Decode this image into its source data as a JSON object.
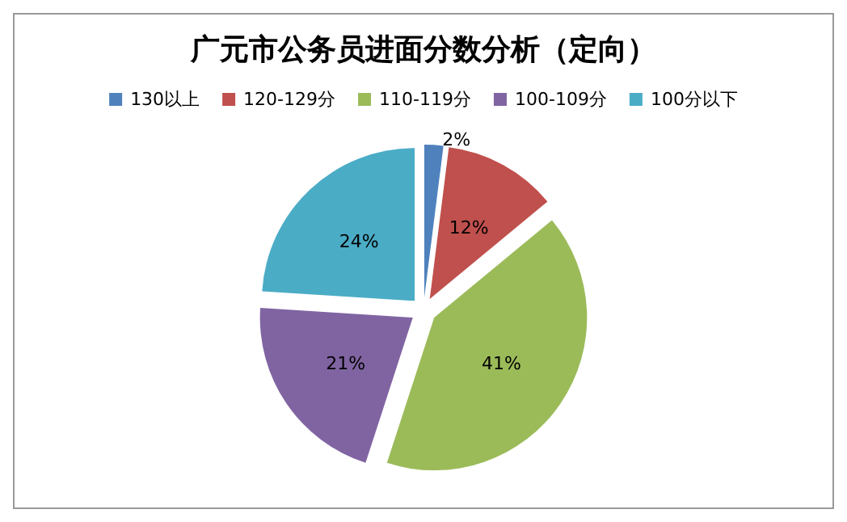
{
  "chart_data": {
    "type": "pie",
    "title": "广元市公务员进面分数分析（定向）",
    "categories": [
      "130以上",
      "120-129分",
      "110-119分",
      "100-109分",
      "100分以下"
    ],
    "values": [
      2,
      12,
      41,
      21,
      24
    ],
    "colors": [
      "#4f81bd",
      "#c0504d",
      "#9bbb59",
      "#8064a2",
      "#4bacc6"
    ],
    "value_labels": [
      "2%",
      "12%",
      "41%",
      "21%",
      "24%"
    ],
    "legend": "top"
  }
}
